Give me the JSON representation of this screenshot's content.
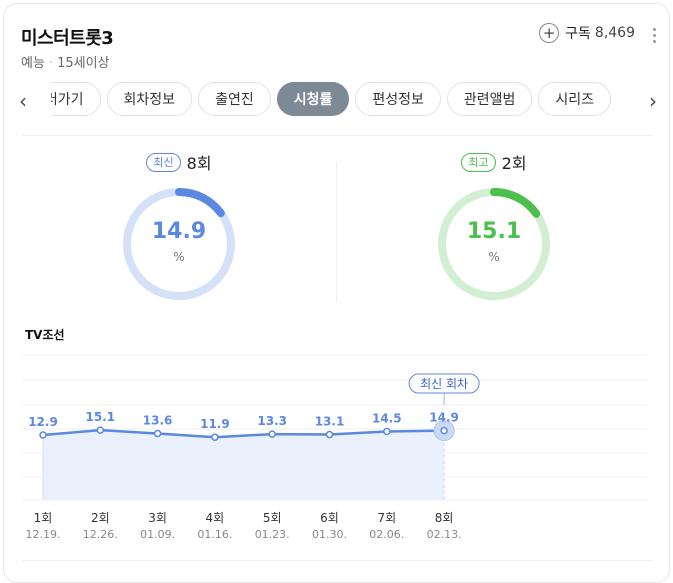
{
  "header": {
    "title": "미스터트롯3",
    "genre": "예능",
    "rating_age": "15세이상",
    "subscribe_label": "구독",
    "subscribe_count": "8,469"
  },
  "tabs": [
    "보러가기",
    "회차정보",
    "출연진",
    "시청률",
    "편성정보",
    "관련앨범",
    "시리즈"
  ],
  "active_tab": "시청률",
  "latest": {
    "badge": "최신",
    "episode": "8회",
    "value": "14.9",
    "unit": "%",
    "color": "#5b88e0",
    "track": "#d5e1f8"
  },
  "best": {
    "badge": "최고",
    "episode": "2회",
    "value": "15.1",
    "unit": "%",
    "color": "#4cbf4c",
    "track": "#d3efd3"
  },
  "channel": "TV조선",
  "chart_data": {
    "type": "line",
    "categories": [
      "1회",
      "2회",
      "3회",
      "4회",
      "5회",
      "6회",
      "7회",
      "8회"
    ],
    "dates": [
      "12.19.",
      "12.26.",
      "01.09.",
      "01.16.",
      "01.23.",
      "01.30.",
      "02.06.",
      "02.13."
    ],
    "values": [
      12.9,
      15.1,
      13.6,
      11.9,
      13.3,
      13.1,
      14.5,
      14.9
    ],
    "annotation": "최신 회차",
    "line_color": "#5b88e0",
    "area_color": "#eaf1fd"
  }
}
